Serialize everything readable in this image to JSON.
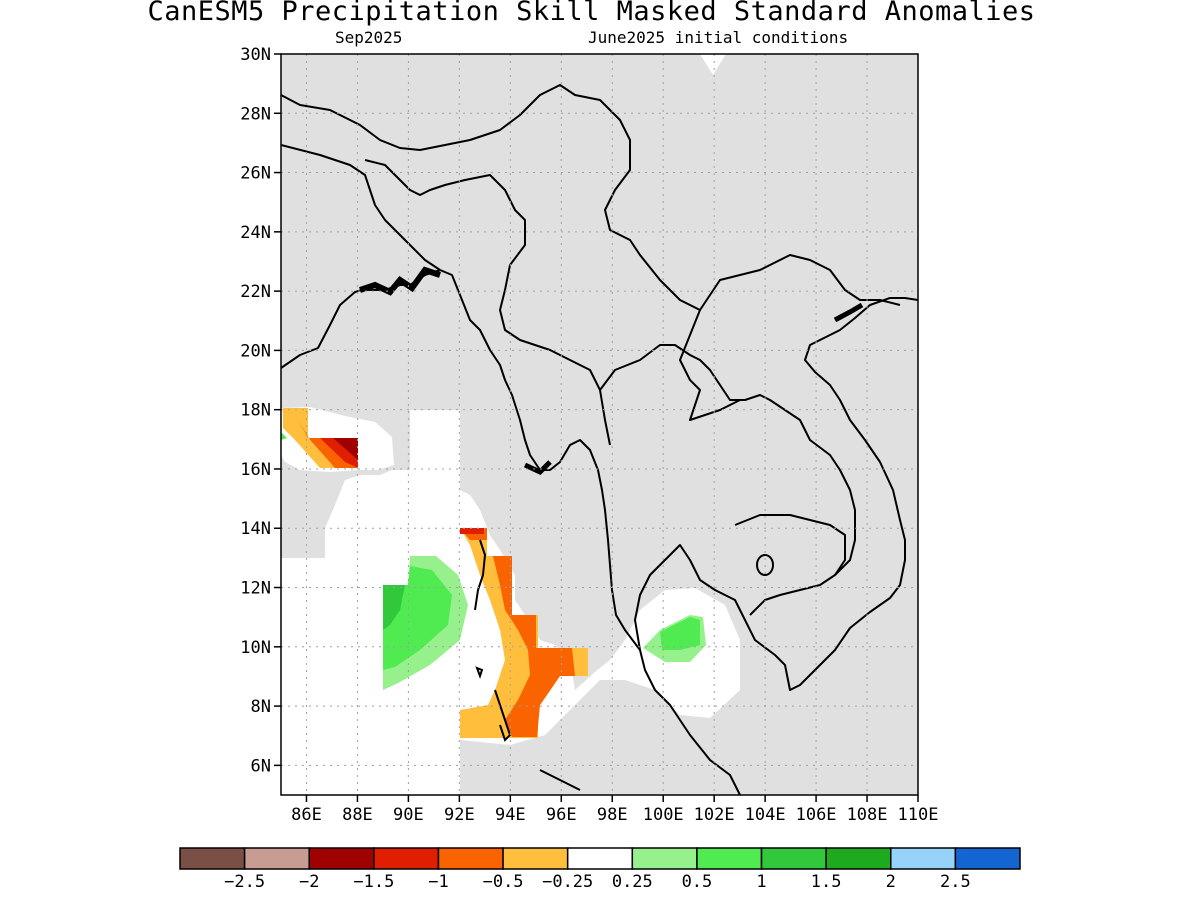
{
  "title": "CanESM5 Precipitation Skill Masked Standard Anomalies",
  "subtitle_left": "Sep2025",
  "subtitle_right": "June2025 initial conditions",
  "map": {
    "lon_range": [
      85,
      110
    ],
    "lat_range": [
      5,
      30
    ],
    "x_ticks": [
      "86E",
      "88E",
      "90E",
      "92E",
      "94E",
      "96E",
      "98E",
      "100E",
      "102E",
      "104E",
      "106E",
      "108E",
      "110E"
    ],
    "y_ticks": [
      "6N",
      "8N",
      "10N",
      "12N",
      "14N",
      "16N",
      "18N",
      "20N",
      "22N",
      "24N",
      "26N",
      "28N",
      "30N"
    ],
    "grid": true,
    "land_color": "#e0e0e0",
    "ocean_color": "#ffffff"
  },
  "colorbar": {
    "colors": [
      "#7a4f45",
      "#c79c92",
      "#a00000",
      "#e01e00",
      "#fa6400",
      "#ffbe3c",
      "#ffffff",
      "#96f08c",
      "#50eb50",
      "#32c83c",
      "#1eaa1e",
      "#96d2fa",
      "#1464d2"
    ],
    "labels": [
      "-2.5",
      "-2",
      "-1.5",
      "-1",
      "-0.5",
      "-0.25",
      "0.25",
      "0.5",
      "1",
      "1.5",
      "2",
      "2.5"
    ]
  }
}
